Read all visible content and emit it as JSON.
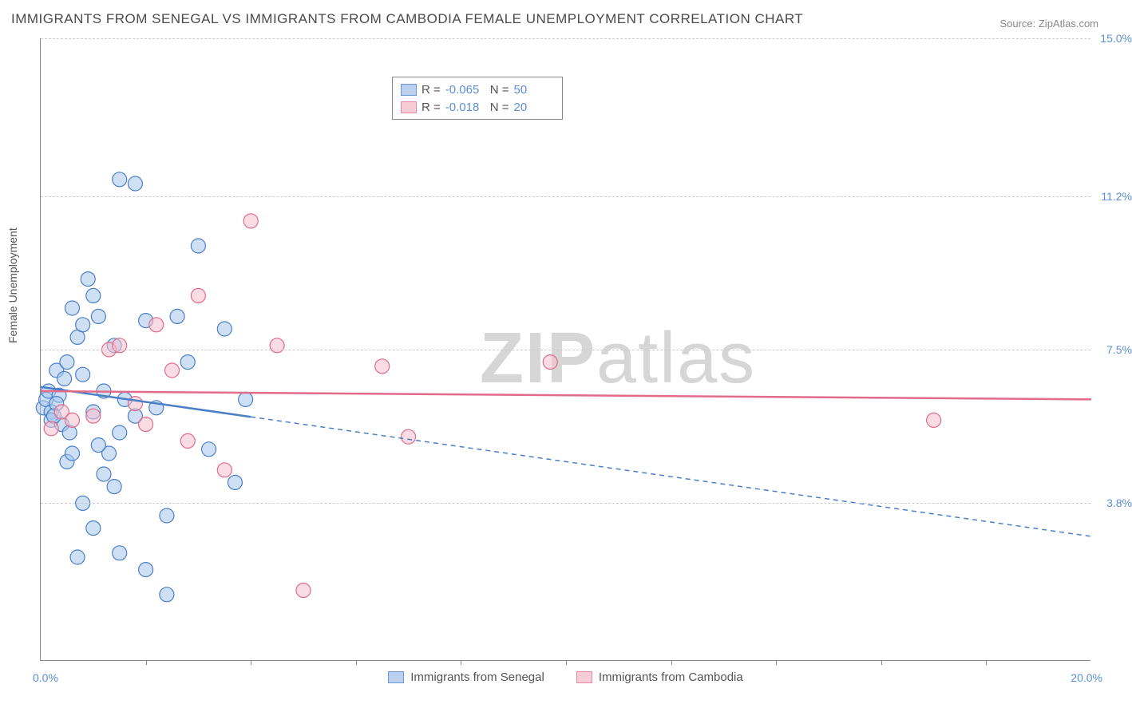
{
  "chart": {
    "type": "scatter",
    "title": "IMMIGRANTS FROM SENEGAL VS IMMIGRANTS FROM CAMBODIA FEMALE UNEMPLOYMENT CORRELATION CHART",
    "source": "Source: ZipAtlas.com",
    "y_axis_label": "Female Unemployment",
    "watermark_bold": "ZIP",
    "watermark_light": "atlas",
    "background_color": "#ffffff",
    "grid_color": "#cccccc",
    "axis_color": "#888888",
    "label_color": "#5b8fd6",
    "title_color": "#4a4a4a",
    "xlim": [
      0,
      20
    ],
    "ylim": [
      0,
      15
    ],
    "x_min_label": "0.0%",
    "x_max_label": "20.0%",
    "x_ticks": [
      2,
      4,
      6,
      8,
      10,
      12,
      14,
      16,
      18
    ],
    "y_gridlines": [
      {
        "value": 3.8,
        "label": "3.8%"
      },
      {
        "value": 7.5,
        "label": "7.5%"
      },
      {
        "value": 11.2,
        "label": "11.2%"
      },
      {
        "value": 15.0,
        "label": "15.0%"
      }
    ],
    "marker_radius": 9,
    "marker_stroke_width": 1.2,
    "trend_line_width": 2.5,
    "series": [
      {
        "id": "senegal",
        "name": "Immigrants from Senegal",
        "fill": "#a8c6ec",
        "stroke": "#4a7fc7",
        "fill_opacity": 0.55,
        "R": "-0.065",
        "N": "50",
        "trend": {
          "x1": 0,
          "y1": 6.6,
          "x2": 20,
          "y2": 3.0,
          "solid_to_x": 4.0
        },
        "points": [
          [
            0.05,
            6.1
          ],
          [
            0.1,
            6.3
          ],
          [
            0.15,
            6.5
          ],
          [
            0.2,
            6.0
          ],
          [
            0.2,
            5.8
          ],
          [
            0.3,
            7.0
          ],
          [
            0.35,
            6.4
          ],
          [
            0.4,
            5.7
          ],
          [
            0.45,
            6.8
          ],
          [
            0.5,
            7.2
          ],
          [
            0.55,
            5.5
          ],
          [
            0.3,
            6.2
          ],
          [
            0.25,
            5.9
          ],
          [
            0.6,
            8.5
          ],
          [
            0.7,
            7.8
          ],
          [
            0.8,
            8.1
          ],
          [
            0.9,
            9.2
          ],
          [
            1.0,
            6.0
          ],
          [
            1.1,
            8.3
          ],
          [
            1.2,
            6.5
          ],
          [
            1.3,
            5.0
          ],
          [
            1.4,
            4.2
          ],
          [
            0.8,
            3.8
          ],
          [
            1.0,
            3.2
          ],
          [
            1.2,
            4.5
          ],
          [
            1.5,
            2.6
          ],
          [
            0.7,
            2.5
          ],
          [
            1.4,
            7.6
          ],
          [
            1.6,
            6.3
          ],
          [
            1.8,
            5.9
          ],
          [
            2.0,
            8.2
          ],
          [
            2.2,
            6.1
          ],
          [
            2.4,
            3.5
          ],
          [
            2.6,
            8.3
          ],
          [
            2.8,
            7.2
          ],
          [
            3.0,
            10.0
          ],
          [
            3.2,
            5.1
          ],
          [
            3.5,
            8.0
          ],
          [
            3.7,
            4.3
          ],
          [
            3.9,
            6.3
          ],
          [
            1.5,
            11.6
          ],
          [
            1.8,
            11.5
          ],
          [
            0.5,
            4.8
          ],
          [
            2.0,
            2.2
          ],
          [
            1.1,
            5.2
          ],
          [
            1.0,
            8.8
          ],
          [
            0.6,
            5.0
          ],
          [
            0.8,
            6.9
          ],
          [
            2.4,
            1.6
          ],
          [
            1.5,
            5.5
          ]
        ]
      },
      {
        "id": "cambodia",
        "name": "Immigrants from Cambodia",
        "fill": "#f5c0cd",
        "stroke": "#e26b8b",
        "fill_opacity": 0.55,
        "R": "-0.018",
        "N": "20",
        "trend": {
          "x1": 0,
          "y1": 6.5,
          "x2": 20,
          "y2": 6.3,
          "solid_to_x": 20
        },
        "points": [
          [
            0.2,
            5.6
          ],
          [
            0.4,
            6.0
          ],
          [
            0.6,
            5.8
          ],
          [
            1.0,
            5.9
          ],
          [
            1.3,
            7.5
          ],
          [
            1.8,
            6.2
          ],
          [
            2.0,
            5.7
          ],
          [
            2.5,
            7.0
          ],
          [
            2.8,
            5.3
          ],
          [
            3.0,
            8.8
          ],
          [
            3.5,
            4.6
          ],
          [
            4.0,
            10.6
          ],
          [
            4.5,
            7.6
          ],
          [
            5.0,
            1.7
          ],
          [
            6.5,
            7.1
          ],
          [
            7.0,
            5.4
          ],
          [
            9.7,
            7.2
          ],
          [
            17.0,
            5.8
          ],
          [
            2.2,
            8.1
          ],
          [
            1.5,
            7.6
          ]
        ]
      }
    ],
    "top_legend_labels": {
      "R": "R =",
      "N": "N ="
    }
  }
}
